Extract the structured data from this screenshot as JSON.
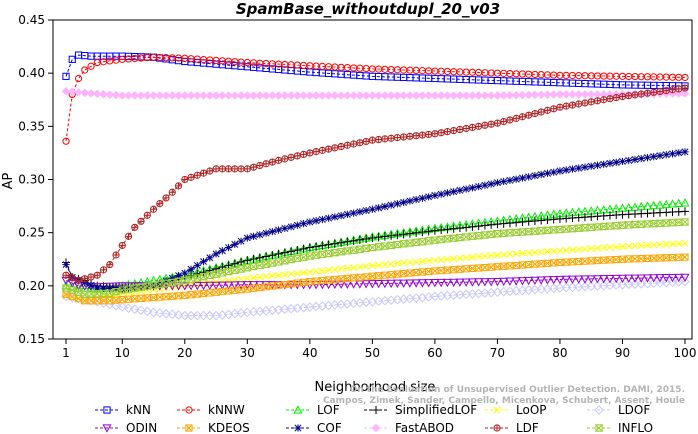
{
  "chart_data": {
    "type": "line",
    "title": "SpamBase_withoutdupl_20_v03",
    "xlabel": "Neighborhood size",
    "ylabel": "AP",
    "xlim": [
      1,
      100
    ],
    "ylim": [
      0.15,
      0.45
    ],
    "xticks": [
      1,
      10,
      20,
      30,
      40,
      50,
      60,
      70,
      80,
      90,
      100
    ],
    "yticks": [
      0.15,
      0.2,
      0.25,
      0.3,
      0.35,
      0.4,
      0.45
    ],
    "xtick_labels": [
      "1",
      "10",
      "20",
      "30",
      "40",
      "50",
      "60",
      "70",
      "80",
      "90",
      "100"
    ],
    "ytick_labels": [
      "0.15",
      "0.20",
      "0.25",
      "0.30",
      "0.35",
      "0.40",
      "0.45"
    ],
    "grid": false,
    "legend_position": "bottom",
    "watermark": [
      "On the Evaluation of Unsupervised Outlier Detection. DAMI, 2015.",
      "Campos, Zimek, Sander, Campello, Micenkova, Schubert, Assent, Houle"
    ],
    "series": [
      {
        "name": "kNN",
        "color": "#0000ff",
        "marker": "square",
        "points": [
          [
            1,
            0.397
          ],
          [
            2,
            0.413
          ],
          [
            3,
            0.417
          ],
          [
            5,
            0.416
          ],
          [
            10,
            0.416
          ],
          [
            15,
            0.415
          ],
          [
            20,
            0.411
          ],
          [
            30,
            0.406
          ],
          [
            40,
            0.401
          ],
          [
            50,
            0.397
          ],
          [
            60,
            0.395
          ],
          [
            70,
            0.393
          ],
          [
            80,
            0.391
          ],
          [
            90,
            0.389
          ],
          [
            100,
            0.388
          ]
        ]
      },
      {
        "name": "kNNW",
        "color": "#ff0000",
        "marker": "circle",
        "points": [
          [
            1,
            0.336
          ],
          [
            2,
            0.38
          ],
          [
            3,
            0.395
          ],
          [
            4,
            0.403
          ],
          [
            6,
            0.41
          ],
          [
            10,
            0.413
          ],
          [
            15,
            0.415
          ],
          [
            20,
            0.414
          ],
          [
            30,
            0.41
          ],
          [
            40,
            0.407
          ],
          [
            50,
            0.404
          ],
          [
            60,
            0.402
          ],
          [
            70,
            0.4
          ],
          [
            80,
            0.398
          ],
          [
            90,
            0.397
          ],
          [
            100,
            0.396
          ]
        ]
      },
      {
        "name": "LOF",
        "color": "#00ee00",
        "marker": "triangle-up",
        "points": [
          [
            1,
            0.2
          ],
          [
            3,
            0.198
          ],
          [
            6,
            0.197
          ],
          [
            10,
            0.2
          ],
          [
            20,
            0.21
          ],
          [
            30,
            0.224
          ],
          [
            40,
            0.236
          ],
          [
            50,
            0.246
          ],
          [
            60,
            0.254
          ],
          [
            70,
            0.261
          ],
          [
            80,
            0.268
          ],
          [
            90,
            0.273
          ],
          [
            100,
            0.278
          ]
        ]
      },
      {
        "name": "SimplifiedLOF",
        "color": "#000000",
        "marker": "plus",
        "points": [
          [
            1,
            0.222
          ],
          [
            2,
            0.208
          ],
          [
            4,
            0.205
          ],
          [
            6,
            0.2
          ],
          [
            10,
            0.198
          ],
          [
            15,
            0.2
          ],
          [
            20,
            0.208
          ],
          [
            30,
            0.224
          ],
          [
            40,
            0.236
          ],
          [
            50,
            0.245
          ],
          [
            60,
            0.252
          ],
          [
            70,
            0.258
          ],
          [
            80,
            0.263
          ],
          [
            90,
            0.267
          ],
          [
            100,
            0.27
          ]
        ]
      },
      {
        "name": "LoOP",
        "color": "#ffff00",
        "marker": "cross",
        "points": [
          [
            1,
            0.19
          ],
          [
            4,
            0.188
          ],
          [
            8,
            0.19
          ],
          [
            10,
            0.193
          ],
          [
            20,
            0.2
          ],
          [
            30,
            0.207
          ],
          [
            40,
            0.213
          ],
          [
            50,
            0.219
          ],
          [
            60,
            0.224
          ],
          [
            70,
            0.229
          ],
          [
            80,
            0.233
          ],
          [
            90,
            0.237
          ],
          [
            100,
            0.24
          ]
        ]
      },
      {
        "name": "LDOF",
        "color": "#c8c8ff",
        "marker": "diamond",
        "points": [
          [
            1,
            0.19
          ],
          [
            6,
            0.185
          ],
          [
            10,
            0.18
          ],
          [
            15,
            0.175
          ],
          [
            20,
            0.172
          ],
          [
            25,
            0.172
          ],
          [
            30,
            0.175
          ],
          [
            40,
            0.18
          ],
          [
            50,
            0.185
          ],
          [
            60,
            0.19
          ],
          [
            70,
            0.194
          ],
          [
            80,
            0.198
          ],
          [
            90,
            0.201
          ],
          [
            100,
            0.204
          ]
        ]
      },
      {
        "name": "ODIN",
        "color": "#9400d3",
        "marker": "triangle-down",
        "points": [
          [
            1,
            0.205
          ],
          [
            3,
            0.2
          ],
          [
            6,
            0.199
          ],
          [
            10,
            0.2
          ],
          [
            20,
            0.2
          ],
          [
            30,
            0.201
          ],
          [
            40,
            0.201
          ],
          [
            50,
            0.202
          ],
          [
            60,
            0.203
          ],
          [
            70,
            0.204
          ],
          [
            80,
            0.206
          ],
          [
            90,
            0.207
          ],
          [
            100,
            0.208
          ]
        ]
      },
      {
        "name": "KDEOS",
        "color": "#ffa500",
        "marker": "square-x",
        "points": [
          [
            1,
            0.192
          ],
          [
            4,
            0.186
          ],
          [
            8,
            0.186
          ],
          [
            10,
            0.187
          ],
          [
            20,
            0.191
          ],
          [
            30,
            0.197
          ],
          [
            40,
            0.204
          ],
          [
            50,
            0.209
          ],
          [
            60,
            0.214
          ],
          [
            70,
            0.218
          ],
          [
            80,
            0.222
          ],
          [
            90,
            0.225
          ],
          [
            100,
            0.227
          ]
        ]
      },
      {
        "name": "COF",
        "color": "#00008b",
        "marker": "asterisk",
        "points": [
          [
            1,
            0.22
          ],
          [
            2,
            0.208
          ],
          [
            4,
            0.203
          ],
          [
            6,
            0.198
          ],
          [
            10,
            0.197
          ],
          [
            15,
            0.2
          ],
          [
            20,
            0.212
          ],
          [
            25,
            0.23
          ],
          [
            30,
            0.245
          ],
          [
            40,
            0.26
          ],
          [
            50,
            0.272
          ],
          [
            60,
            0.285
          ],
          [
            70,
            0.297
          ],
          [
            80,
            0.308
          ],
          [
            90,
            0.317
          ],
          [
            100,
            0.326
          ]
        ]
      },
      {
        "name": "FastABOD",
        "color": "#ffb4ff",
        "marker": "diamond-filled",
        "points": [
          [
            1,
            0.383
          ],
          [
            5,
            0.381
          ],
          [
            10,
            0.379
          ],
          [
            20,
            0.379
          ],
          [
            30,
            0.379
          ],
          [
            40,
            0.379
          ],
          [
            50,
            0.379
          ],
          [
            60,
            0.379
          ],
          [
            70,
            0.379
          ],
          [
            80,
            0.38
          ],
          [
            90,
            0.38
          ],
          [
            100,
            0.381
          ]
        ]
      },
      {
        "name": "LDF",
        "color": "#b22222",
        "marker": "circle-plus",
        "points": [
          [
            1,
            0.21
          ],
          [
            3,
            0.205
          ],
          [
            6,
            0.21
          ],
          [
            8,
            0.22
          ],
          [
            10,
            0.238
          ],
          [
            12,
            0.255
          ],
          [
            15,
            0.272
          ],
          [
            18,
            0.288
          ],
          [
            20,
            0.3
          ],
          [
            25,
            0.31
          ],
          [
            30,
            0.31
          ],
          [
            35,
            0.318
          ],
          [
            40,
            0.325
          ],
          [
            50,
            0.337
          ],
          [
            60,
            0.343
          ],
          [
            70,
            0.353
          ],
          [
            80,
            0.368
          ],
          [
            90,
            0.378
          ],
          [
            100,
            0.386
          ]
        ]
      },
      {
        "name": "INFLO",
        "color": "#9acd32",
        "marker": "hourglass",
        "points": [
          [
            1,
            0.198
          ],
          [
            4,
            0.192
          ],
          [
            8,
            0.193
          ],
          [
            10,
            0.196
          ],
          [
            20,
            0.205
          ],
          [
            30,
            0.217
          ],
          [
            40,
            0.228
          ],
          [
            50,
            0.236
          ],
          [
            60,
            0.243
          ],
          [
            70,
            0.249
          ],
          [
            80,
            0.253
          ],
          [
            90,
            0.257
          ],
          [
            100,
            0.26
          ]
        ]
      }
    ]
  }
}
